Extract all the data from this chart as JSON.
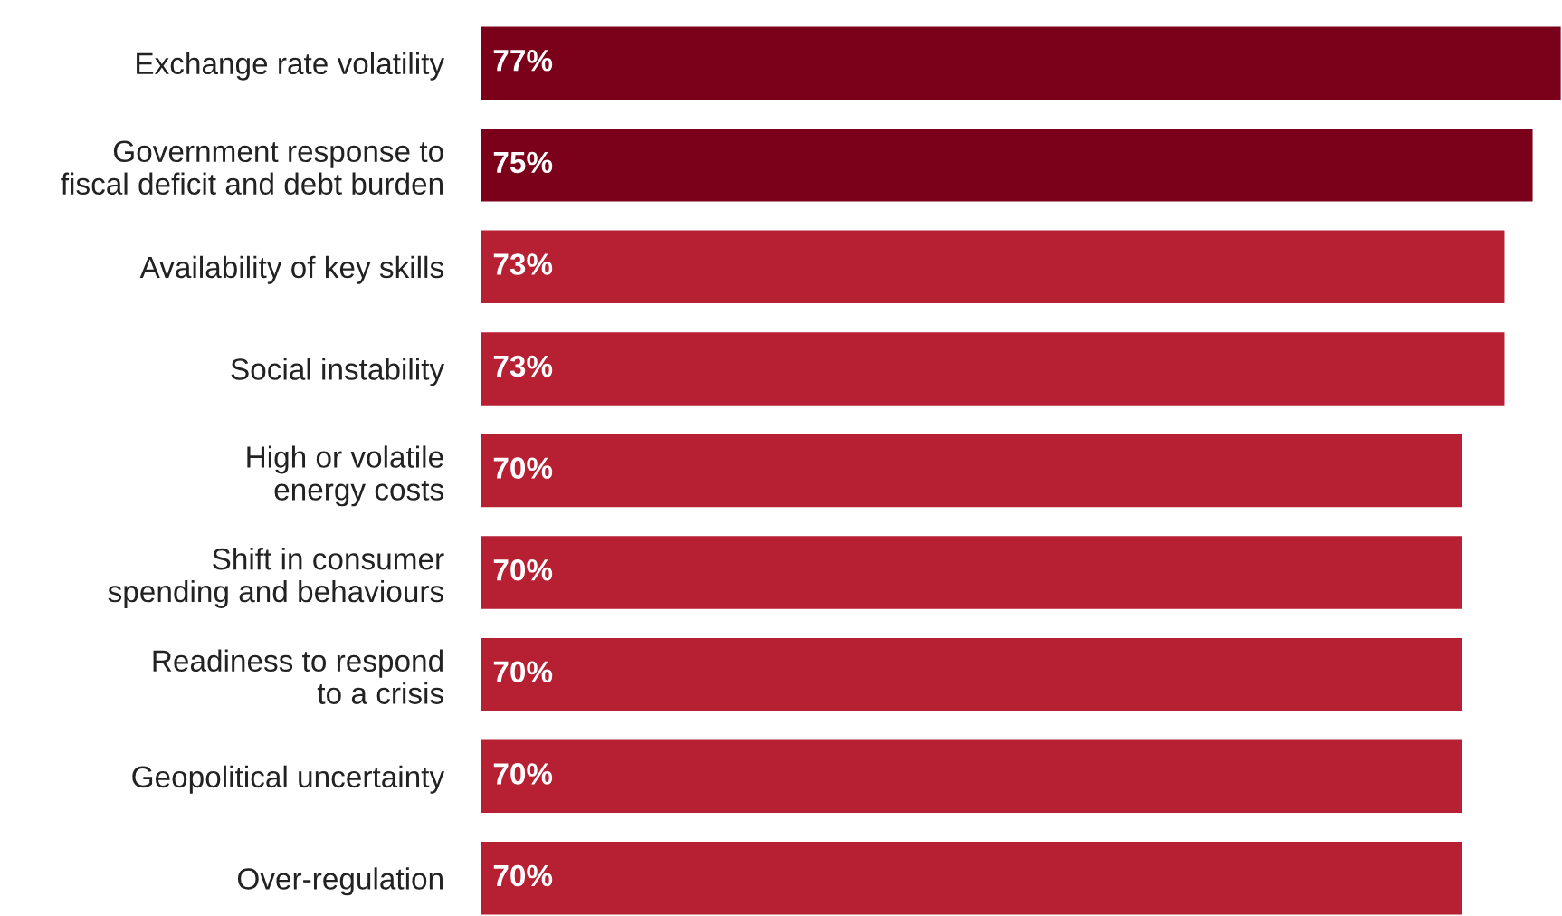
{
  "chart_data": {
    "type": "bar",
    "orientation": "horizontal",
    "value_labels": [
      "77%",
      "75%",
      "73%",
      "73%",
      "70%",
      "70%",
      "70%",
      "70%",
      "70%"
    ],
    "categories": [
      "Exchange rate volatility",
      "Government response to\nfiscal deficit and debt burden",
      "Availability of key skills",
      "Social instability",
      "High or volatile\nenergy costs",
      "Shift in consumer\nspending and behaviours",
      "Readiness to respond\nto a crisis",
      "Geopolitical uncertainty",
      "Over-regulation"
    ],
    "values": [
      77,
      75,
      73,
      73,
      70,
      70,
      70,
      70,
      70
    ],
    "colors": [
      "#7b0019",
      "#7b0019",
      "#b72033",
      "#b72033",
      "#b72033",
      "#b72033",
      "#b72033",
      "#b72033",
      "#b72033"
    ],
    "grid": false,
    "legend": false
  }
}
